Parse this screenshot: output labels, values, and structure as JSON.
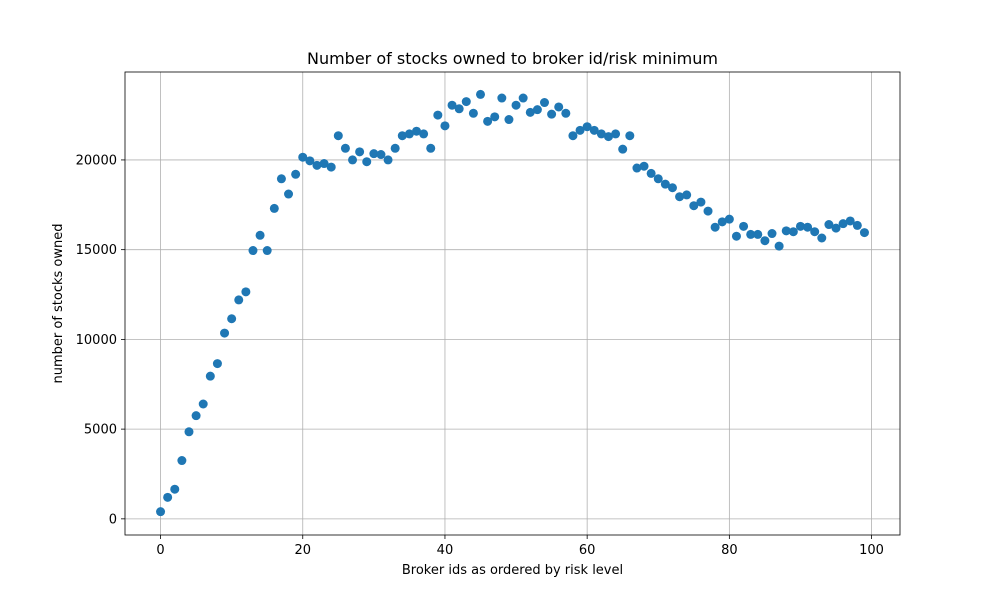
{
  "chart_data": {
    "type": "scatter",
    "title": "Number of stocks owned to broker id/risk minimum",
    "xlabel": "Broker ids as ordered by risk level",
    "ylabel": "number of stocks owned",
    "xlim": [
      -5,
      104
    ],
    "ylim": [
      -900,
      24900
    ],
    "xticks": [
      0,
      20,
      40,
      60,
      80,
      100
    ],
    "yticks": [
      0,
      5000,
      10000,
      15000,
      20000
    ],
    "grid": true,
    "marker_color": "#1f77b4",
    "series": [
      {
        "x": [
          0,
          1,
          2,
          3,
          4,
          5,
          6,
          7,
          8,
          9,
          10,
          11,
          12,
          13,
          14,
          15,
          16,
          17,
          18,
          19,
          20,
          21,
          22,
          23,
          24,
          25,
          26,
          27,
          28,
          29,
          30,
          31,
          32,
          33,
          34,
          35,
          36,
          37,
          38,
          39,
          40,
          41,
          42,
          43,
          44,
          45,
          46,
          47,
          48,
          49,
          50,
          51,
          52,
          53,
          54,
          55,
          56,
          57,
          58,
          59,
          60,
          61,
          62,
          63,
          64,
          65,
          66,
          67,
          68,
          69,
          70,
          71,
          72,
          73,
          74,
          75,
          76,
          77,
          78,
          79,
          80,
          81,
          82,
          83,
          84,
          85,
          86,
          87,
          88,
          89,
          90,
          91,
          92,
          93,
          94,
          95,
          96,
          97,
          98,
          99
        ],
        "y": [
          400,
          1200,
          1650,
          3250,
          4850,
          5750,
          6400,
          7950,
          8650,
          10350,
          11150,
          12200,
          12650,
          14950,
          15800,
          14950,
          17300,
          18950,
          18100,
          19200,
          20150,
          19950,
          19700,
          19800,
          19600,
          21350,
          20650,
          20000,
          20450,
          19900,
          20350,
          20300,
          20000,
          20650,
          21350,
          21450,
          21600,
          21450,
          20650,
          22500,
          21900,
          23050,
          22850,
          23250,
          22600,
          23650,
          22150,
          22400,
          23450,
          22250,
          23050,
          23450,
          22650,
          22800,
          23200,
          22550,
          22950,
          22600,
          21350,
          21650,
          21850,
          21650,
          21450,
          21300,
          21450,
          20600,
          21350,
          19550,
          19650,
          19250,
          18950,
          18650,
          18450,
          17950,
          18050,
          17450,
          17650,
          17150,
          16250,
          16550,
          16700,
          15750,
          16300,
          15850,
          15850,
          15500,
          15900,
          15200,
          16050,
          16000,
          16300,
          16250,
          16000,
          15650,
          16400,
          16200,
          16450,
          16600,
          16350,
          15950
        ]
      }
    ]
  }
}
